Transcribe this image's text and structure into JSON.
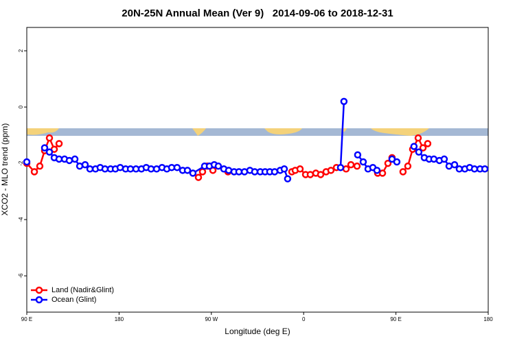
{
  "chart_data": {
    "type": "line",
    "title": "20N-25N Annual Mean (Ver 9)   2014-09-06 to 2018-12-31",
    "xlabel": "Longitude (deg E)",
    "ylabel": "XCO2 - MLO trend (ppm)",
    "xlim": [
      90,
      540
    ],
    "xticks": [
      {
        "value": 90,
        "label": "90 E"
      },
      {
        "value": 180,
        "label": "180"
      },
      {
        "value": 270,
        "label": "90 W"
      },
      {
        "value": 360,
        "label": "0"
      },
      {
        "value": 450,
        "label": "90 E"
      },
      {
        "value": 540,
        "label": "180"
      }
    ],
    "ylim": [
      -7.29,
      2.83
    ],
    "yticks": [
      -6,
      -4,
      -2,
      0,
      2
    ],
    "legend_position": "bottom-left",
    "series": [
      {
        "name": "Land (Nadir&Glint)",
        "color": "#ff0000",
        "x": [
          90,
          97.4,
          102.7,
          107.4,
          112.1,
          116.8,
          121.5,
          null,
          257.4,
          261.4,
          266.1,
          271.5,
          null,
          286.2,
          null,
          348.5,
          351.8,
          356.5,
          361.9,
          366.5,
          371.9,
          376.6,
          381.9,
          386.6,
          392,
          401.4,
          406.1,
          412.1,
          null,
          432.2,
          436.9,
          442.2,
          446.2,
          null,
          456.9,
          461.6,
          466.3,
          471.7,
          476.4,
          481
        ],
        "values": [
          -2.0,
          -2.3,
          -2.1,
          -1.55,
          -1.1,
          -1.5,
          -1.3,
          null,
          -2.5,
          -2.3,
          -2.1,
          -2.25,
          null,
          -2.3,
          null,
          -2.3,
          -2.25,
          -2.2,
          -2.4,
          -2.4,
          -2.35,
          -2.4,
          -2.3,
          -2.25,
          -2.15,
          -2.2,
          -2.05,
          -2.1,
          null,
          -2.35,
          -2.35,
          -2.0,
          -1.8,
          null,
          -2.3,
          -2.1,
          -1.5,
          -1.1,
          -1.45,
          -1.3
        ]
      },
      {
        "name": "Ocean (Glint)",
        "color": "#0000ff",
        "x": [
          90,
          null,
          107.4,
          112.1,
          116.8,
          121.5,
          126.8,
          131.5,
          136.9,
          141.6,
          146.9,
          151.6,
          157,
          161.6,
          166.3,
          171.7,
          176.4,
          181.1,
          186.4,
          191.1,
          196.5,
          201.8,
          206.5,
          211.2,
          216.6,
          221.9,
          226.6,
          231.3,
          236.6,
          242,
          246.7,
          252,
          263.4,
          268.1,
          272.8,
          276.8,
          282.2,
          286.9,
          292.2,
          296.9,
          302.3,
          307.6,
          312.3,
          317.7,
          322.4,
          327,
          331.7,
          337.1,
          341.1,
          344.4,
          null,
          396,
          399.3,
          null,
          412.7,
          418.1,
          422.8,
          427.5,
          431.5,
          null,
          446.2,
          450.9,
          null,
          467.6,
          472.3,
          477.7,
          482.4,
          487,
          492.4,
          497.1,
          501.8,
          507.2,
          511.8,
          517.2,
          521.9,
          526.6,
          532,
          536.7
        ],
        "values": [
          -1.95,
          null,
          -1.45,
          -1.6,
          -1.8,
          -1.85,
          -1.85,
          -1.9,
          -1.85,
          -2.1,
          -2.05,
          -2.2,
          -2.2,
          -2.15,
          -2.2,
          -2.2,
          -2.2,
          -2.15,
          -2.2,
          -2.2,
          -2.2,
          -2.2,
          -2.15,
          -2.2,
          -2.2,
          -2.15,
          -2.2,
          -2.15,
          -2.15,
          -2.25,
          -2.25,
          -2.35,
          -2.1,
          -2.1,
          -2.05,
          -2.1,
          -2.2,
          -2.25,
          -2.3,
          -2.3,
          -2.3,
          -2.25,
          -2.3,
          -2.3,
          -2.3,
          -2.3,
          -2.3,
          -2.25,
          -2.2,
          -2.55,
          null,
          -2.15,
          0.2,
          null,
          -1.7,
          -1.95,
          -2.2,
          -2.15,
          -2.25,
          null,
          -1.85,
          -1.95,
          null,
          -1.4,
          -1.6,
          -1.8,
          -1.85,
          -1.85,
          -1.9,
          -1.85,
          -2.1,
          -2.05,
          -2.2,
          -2.2,
          -2.15,
          -2.2,
          -2.2,
          -2.2
        ]
      }
    ]
  }
}
